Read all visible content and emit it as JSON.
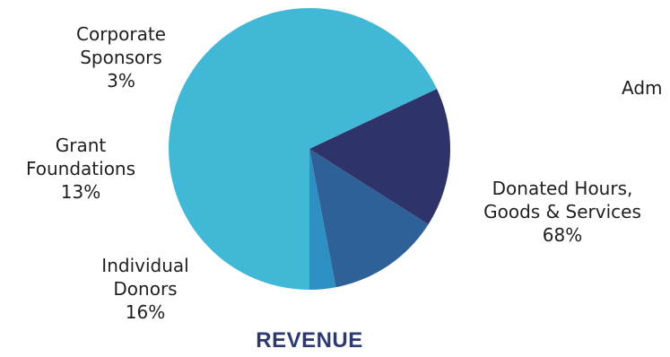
{
  "chart_data": {
    "type": "pie",
    "title": "REVENUE",
    "slices": [
      {
        "name": "Donated Hours, Goods & Services",
        "lines": [
          "Donated Hours,",
          "Goods & Services"
        ],
        "percent_label": "68%",
        "value": 68,
        "color": "#42b8d7"
      },
      {
        "name": "Individual Donors",
        "lines": [
          "Individual",
          "Donors"
        ],
        "percent_label": "16%",
        "value": 16,
        "color": "#2e346a"
      },
      {
        "name": "Grant Foundations",
        "lines": [
          "Grant",
          "Foundations"
        ],
        "percent_label": "13%",
        "value": 13,
        "color": "#2e6198"
      },
      {
        "name": "Corporate Sponsors",
        "lines": [
          "Corporate",
          "Sponsors"
        ],
        "percent_label": "3%",
        "value": 3,
        "color": "#2e8fc2"
      }
    ]
  },
  "partial_label": "Adm"
}
